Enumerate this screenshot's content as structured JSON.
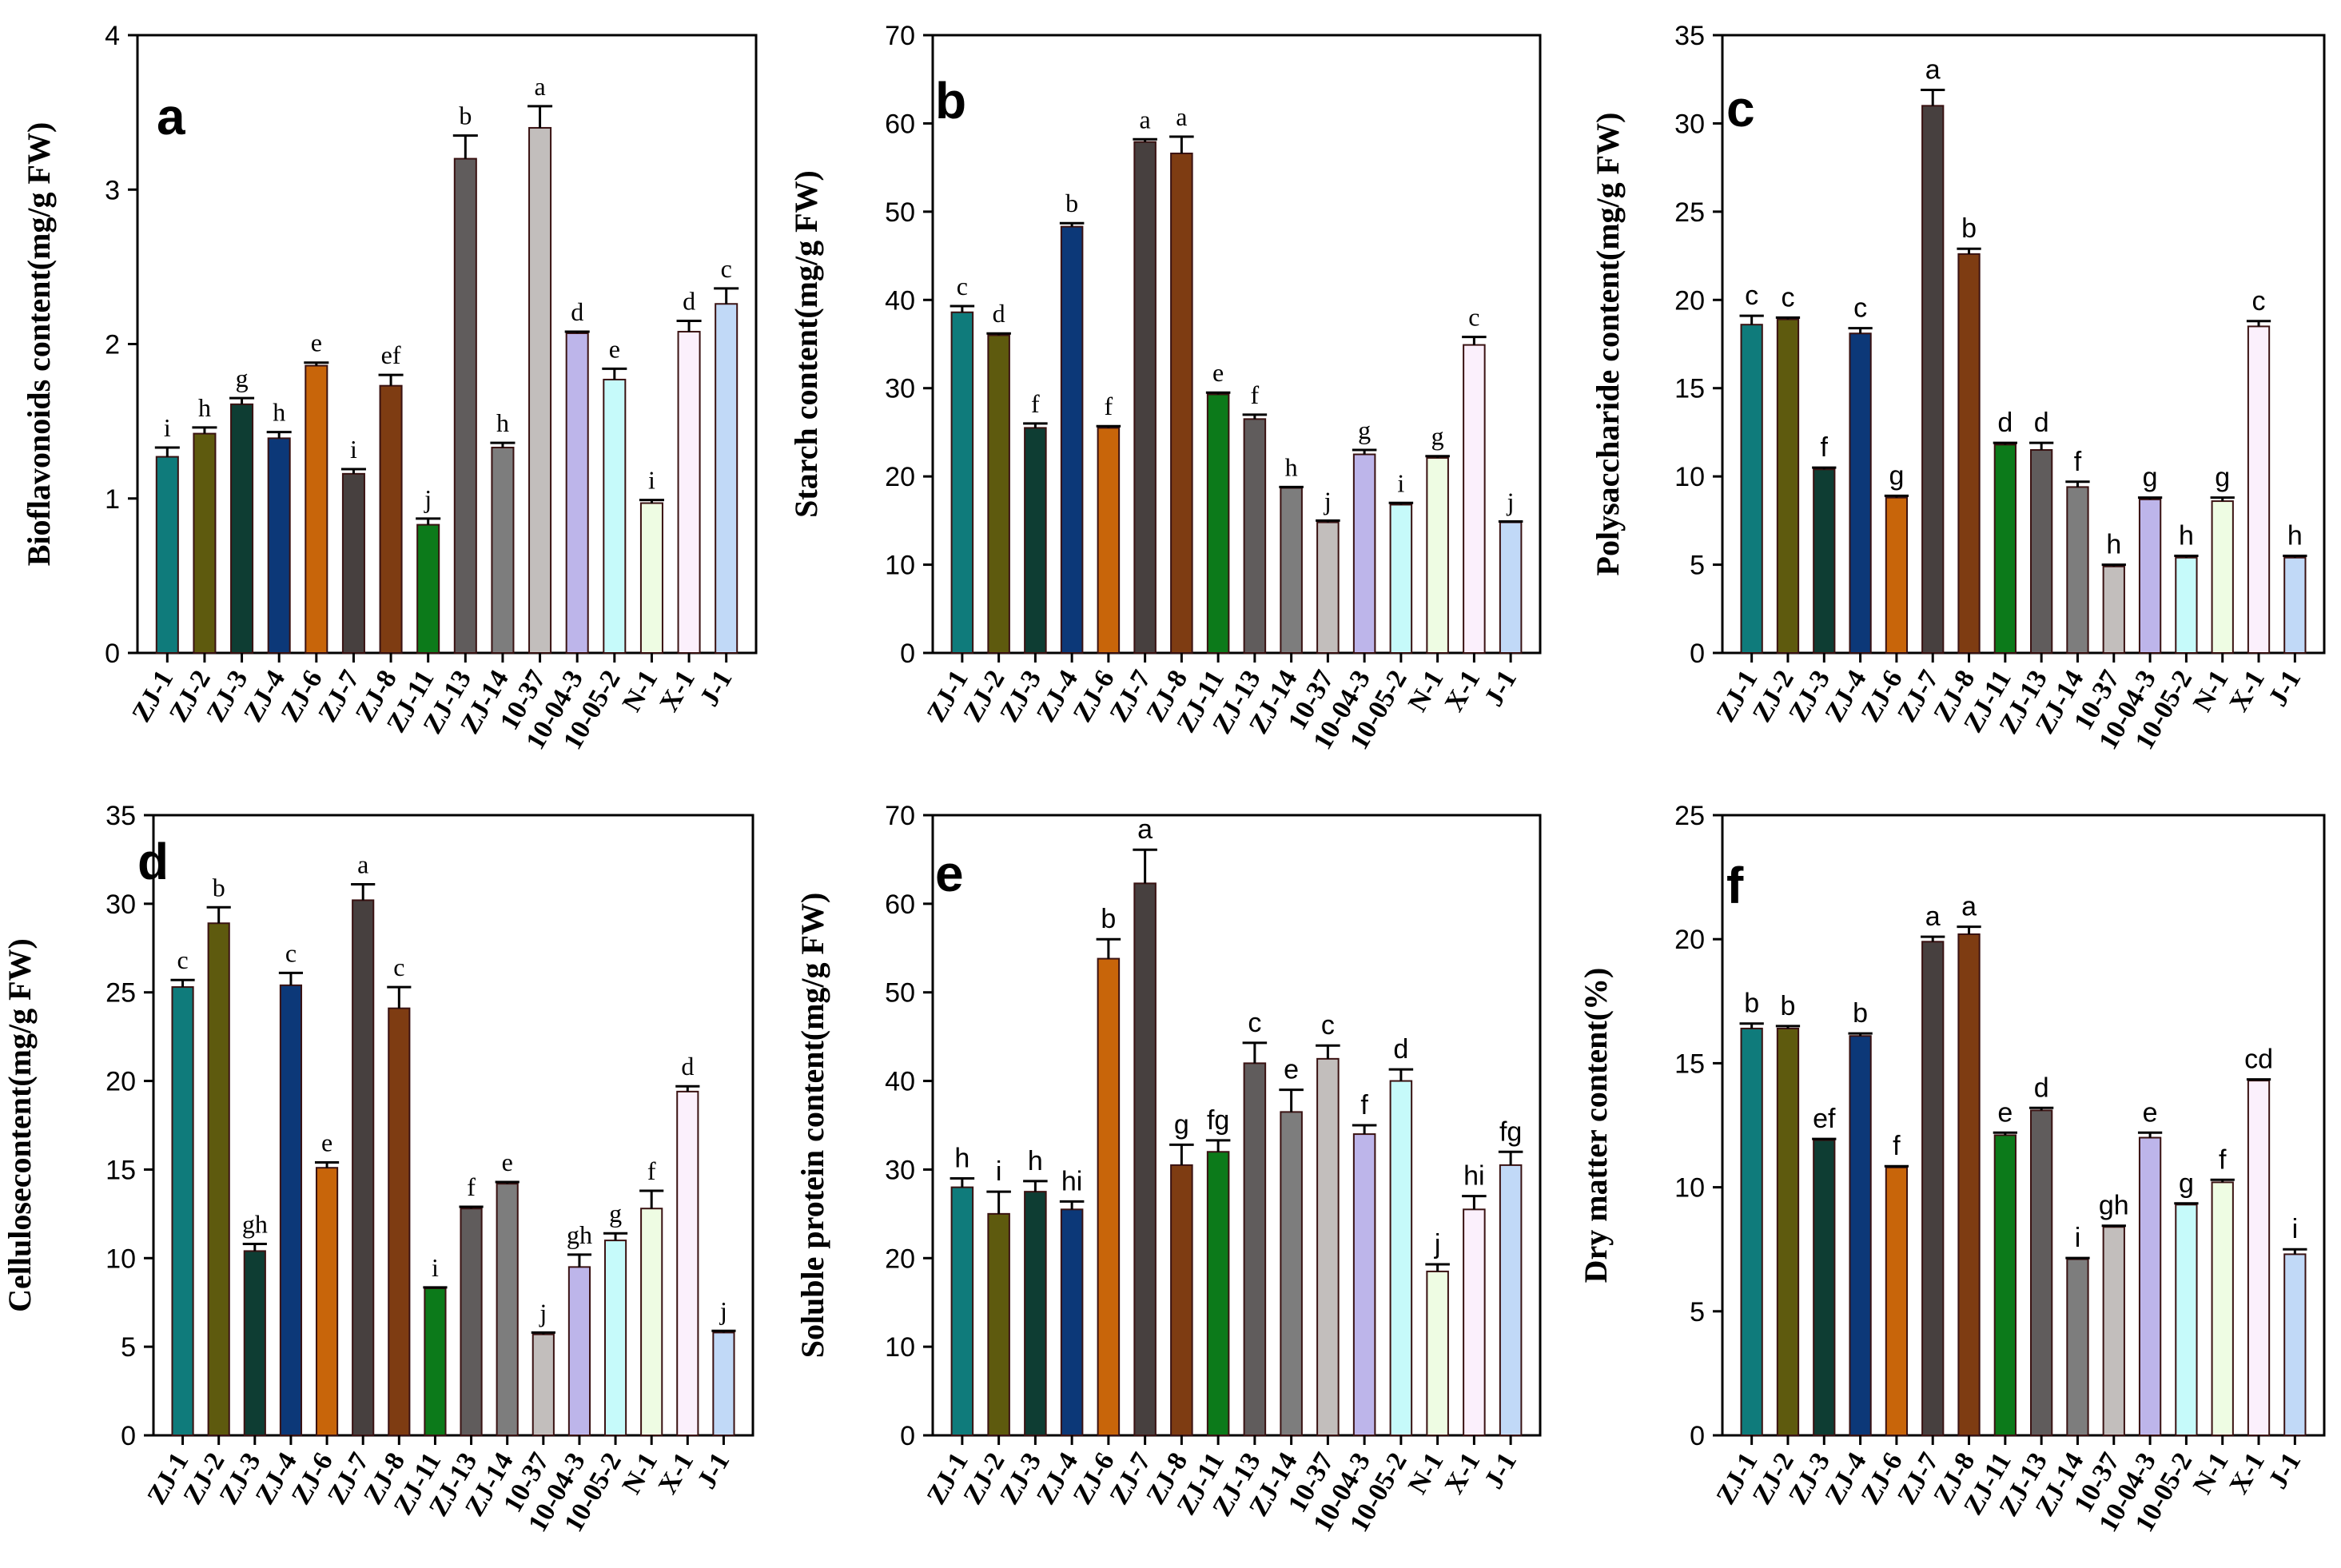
{
  "categories": [
    "ZJ-1",
    "ZJ-2",
    "ZJ-3",
    "ZJ-4",
    "ZJ-6",
    "ZJ-7",
    "ZJ-8",
    "ZJ-11",
    "ZJ-13",
    "ZJ-14",
    "10-37",
    "10-04-3",
    "10-05-2",
    "N-1",
    "X-1",
    "J-1"
  ],
  "colors": [
    "#0f7b7b",
    "#5e5a0e",
    "#0e3d33",
    "#0c3878",
    "#c8650a",
    "#47403f",
    "#7e3c12",
    "#0c7a1a",
    "#605c5c",
    "#7d7d7d",
    "#c2bebc",
    "#bdb5ea",
    "#c6fafa",
    "#eefce3",
    "#fbf0fc",
    "#c1d9f7"
  ],
  "chart_data": [
    {
      "type": "bar",
      "panel": "a",
      "ylabel": "Bioflavonoids content(mg/g FW)",
      "ylim": [
        0,
        4
      ],
      "yticks": [
        0,
        1,
        2,
        3,
        4
      ],
      "values": [
        1.27,
        1.42,
        1.61,
        1.39,
        1.86,
        1.16,
        1.73,
        0.83,
        3.2,
        1.33,
        3.4,
        2.07,
        1.77,
        0.97,
        2.08,
        2.26
      ],
      "errors": [
        0.06,
        0.04,
        0.04,
        0.04,
        0.02,
        0.03,
        0.07,
        0.04,
        0.15,
        0.03,
        0.14,
        0.01,
        0.07,
        0.02,
        0.07,
        0.1
      ],
      "letters": [
        "i",
        "h",
        "g",
        "h",
        "e",
        "i",
        "ef",
        "j",
        "b",
        "h",
        "a",
        "d",
        "e",
        "i",
        "d",
        "c"
      ]
    },
    {
      "type": "bar",
      "panel": "b",
      "ylabel": "Starch content(mg/g FW)",
      "ylim": [
        0,
        70
      ],
      "yticks": [
        0,
        10,
        20,
        30,
        40,
        50,
        60,
        70
      ],
      "values": [
        38.6,
        36.0,
        25.5,
        48.3,
        25.5,
        57.9,
        56.6,
        29.3,
        26.5,
        18.7,
        14.8,
        22.5,
        16.8,
        22.1,
        34.9,
        14.8
      ],
      "errors": [
        0.7,
        0.2,
        0.5,
        0.4,
        0.2,
        0.3,
        1.9,
        0.2,
        0.5,
        0.1,
        0.2,
        0.5,
        0.2,
        0.2,
        0.9,
        0.1
      ],
      "letters": [
        "c",
        "d",
        "f",
        "b",
        "f",
        "a",
        "a",
        "e",
        "f",
        "h",
        "j",
        "g",
        "i",
        "g",
        "c",
        "j"
      ]
    },
    {
      "type": "bar",
      "panel": "c",
      "ylabel": "Polysaccharide content(mg/g FW)",
      "ylim": [
        0,
        35
      ],
      "yticks": [
        0,
        5,
        10,
        15,
        20,
        25,
        30,
        35
      ],
      "values": [
        18.6,
        18.9,
        10.4,
        18.1,
        8.8,
        31.0,
        22.6,
        11.8,
        11.5,
        9.4,
        4.9,
        8.7,
        5.4,
        8.6,
        18.5,
        5.4
      ],
      "errors": [
        0.5,
        0.1,
        0.1,
        0.3,
        0.1,
        0.9,
        0.3,
        0.1,
        0.4,
        0.3,
        0.1,
        0.1,
        0.1,
        0.2,
        0.3,
        0.1
      ],
      "letters": [
        "c",
        "c",
        "f",
        "c",
        "g",
        "a",
        "b",
        "d",
        "d",
        "f",
        "h",
        "g",
        "h",
        "g",
        "c",
        "h"
      ]
    },
    {
      "type": "bar",
      "panel": "d",
      "ylabel": "Cellulosecontent(mg/g FW)",
      "ylim": [
        0,
        35
      ],
      "yticks": [
        0,
        5,
        10,
        15,
        20,
        25,
        30,
        35
      ],
      "values": [
        25.3,
        28.9,
        10.4,
        25.4,
        15.1,
        30.2,
        24.1,
        8.3,
        12.8,
        14.2,
        5.7,
        9.5,
        11.0,
        12.8,
        19.4,
        5.8
      ],
      "errors": [
        0.4,
        0.9,
        0.4,
        0.7,
        0.3,
        0.9,
        1.2,
        0.05,
        0.1,
        0.1,
        0.1,
        0.7,
        0.4,
        1.0,
        0.3,
        0.1
      ],
      "letters": [
        "c",
        "b",
        "gh",
        "c",
        "e",
        "a",
        "c",
        "i",
        "f",
        "e",
        "j",
        "gh",
        "g",
        "f",
        "d",
        "j"
      ]
    },
    {
      "type": "bar",
      "panel": "e",
      "ylabel": "Soluble protein content(mg/g FW)",
      "ylim": [
        0,
        70
      ],
      "yticks": [
        0,
        10,
        20,
        30,
        40,
        50,
        60,
        70
      ],
      "values": [
        28.0,
        25.0,
        27.5,
        25.5,
        53.8,
        62.3,
        30.5,
        32.0,
        42.0,
        36.5,
        42.5,
        34.0,
        40.0,
        18.5,
        25.5,
        30.5
      ],
      "errors": [
        1.0,
        2.5,
        1.2,
        0.9,
        2.2,
        3.8,
        2.3,
        1.3,
        2.3,
        2.5,
        1.5,
        1.0,
        1.3,
        0.8,
        1.5,
        1.5
      ],
      "letters": [
        "h",
        "i",
        "h",
        "hi",
        "b",
        "a",
        "g",
        "fg",
        "c",
        "e",
        "c",
        "f",
        "d",
        "j",
        "hi",
        "fg"
      ]
    },
    {
      "type": "bar",
      "panel": "f",
      "ylabel": "Dry matter content(%)",
      "ylim": [
        0,
        25
      ],
      "yticks": [
        0,
        5,
        10,
        15,
        20,
        25
      ],
      "values": [
        16.4,
        16.4,
        11.9,
        16.1,
        10.8,
        19.9,
        20.2,
        12.1,
        13.1,
        7.1,
        8.4,
        12.0,
        9.3,
        10.2,
        14.3,
        7.3
      ],
      "errors": [
        0.2,
        0.1,
        0.05,
        0.1,
        0.05,
        0.2,
        0.3,
        0.1,
        0.1,
        0.05,
        0.05,
        0.2,
        0.05,
        0.1,
        0.05,
        0.2
      ],
      "letters": [
        "b",
        "b",
        "ef",
        "b",
        "f",
        "a",
        "a",
        "e",
        "d",
        "i",
        "gh",
        "e",
        "g",
        "f",
        "cd",
        "i"
      ]
    }
  ]
}
